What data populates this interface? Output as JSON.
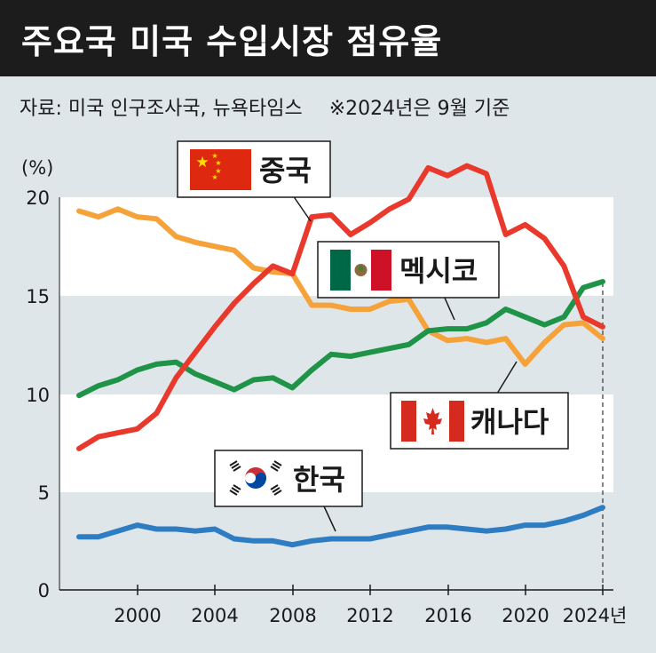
{
  "header": {
    "title": "주요국 미국 수입시장 점유율",
    "source": "자료: 미국 인구조사국, 뉴욕타임스",
    "note": "※2024년은 9월 기준"
  },
  "chart_data": {
    "type": "line",
    "title": "주요국 미국 수입시장 점유율",
    "ylabel": "(%)",
    "xlabel": "",
    "ylim": [
      0,
      20
    ],
    "xlim": [
      1997,
      2024
    ],
    "y_ticks": [
      "0",
      "5",
      "10",
      "15",
      "20"
    ],
    "x_ticks": [
      "2000",
      "2004",
      "2008",
      "2012",
      "2016",
      "2020",
      "2024년"
    ],
    "x": [
      1997,
      1998,
      1999,
      2000,
      2001,
      2002,
      2003,
      2004,
      2005,
      2006,
      2007,
      2008,
      2009,
      2010,
      2011,
      2012,
      2013,
      2014,
      2015,
      2016,
      2017,
      2018,
      2019,
      2020,
      2021,
      2022,
      2023,
      2024
    ],
    "series": [
      {
        "name": "중국",
        "color": "#e8392c",
        "values": [
          7.2,
          7.8,
          8.0,
          8.2,
          9.0,
          10.8,
          12.1,
          13.4,
          14.6,
          15.6,
          16.5,
          16.1,
          19.0,
          19.1,
          18.1,
          18.7,
          19.4,
          19.9,
          21.5,
          21.1,
          21.6,
          21.2,
          18.1,
          18.6,
          17.9,
          16.5,
          13.9,
          13.4
        ]
      },
      {
        "name": "캐나다",
        "color": "#f6a23a",
        "values": [
          19.3,
          19.0,
          19.4,
          19.0,
          18.9,
          18.0,
          17.7,
          17.5,
          17.3,
          16.4,
          16.2,
          16.1,
          14.5,
          14.5,
          14.3,
          14.3,
          14.7,
          14.8,
          13.2,
          12.7,
          12.8,
          12.6,
          12.8,
          11.5,
          12.6,
          13.5,
          13.6,
          12.8
        ]
      },
      {
        "name": "멕시코",
        "color": "#1f9448",
        "values": [
          9.9,
          10.4,
          10.7,
          11.2,
          11.5,
          11.6,
          11.0,
          10.6,
          10.2,
          10.7,
          10.8,
          10.3,
          11.2,
          12.0,
          11.9,
          12.1,
          12.3,
          12.5,
          13.2,
          13.3,
          13.3,
          13.6,
          14.3,
          13.9,
          13.5,
          13.9,
          15.4,
          15.7
        ]
      },
      {
        "name": "한국",
        "color": "#2e7dc2",
        "values": [
          2.7,
          2.7,
          3.0,
          3.3,
          3.1,
          3.1,
          3.0,
          3.1,
          2.6,
          2.5,
          2.5,
          2.3,
          2.5,
          2.6,
          2.6,
          2.6,
          2.8,
          3.0,
          3.2,
          3.2,
          3.1,
          3.0,
          3.1,
          3.3,
          3.3,
          3.5,
          3.8,
          4.2
        ]
      }
    ]
  },
  "callouts": {
    "china": "중국",
    "mexico": "멕시코",
    "canada": "캐나다",
    "korea": "한국"
  },
  "colors": {
    "china_flag": "#de2910",
    "canada_flag": "#d52b1e",
    "mexico_green": "#006847",
    "mexico_red": "#ce1126",
    "korea_red": "#cd2e3a",
    "korea_blue": "#0047a0"
  }
}
